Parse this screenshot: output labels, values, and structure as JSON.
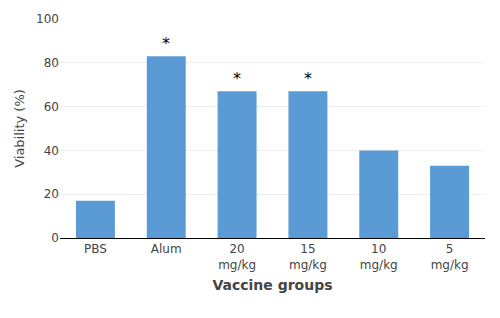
{
  "chart_data": {
    "type": "bar",
    "xlabel": "Vaccine groups",
    "ylabel": "Viability (%)",
    "categories": [
      "PBS",
      "Alum",
      "20\nmg/kg",
      "15\nmg/kg",
      "10\nmg/kg",
      "5\nmg/kg"
    ],
    "values": [
      17,
      83,
      67,
      67,
      40,
      33
    ],
    "color": "#5b9bd5",
    "ylim": [
      0,
      100
    ],
    "yticks": [
      0,
      20,
      40,
      60,
      80,
      100
    ],
    "grid": true,
    "annotations": [
      {
        "text": "*",
        "category": "Alum"
      },
      {
        "text": "*",
        "category": "20\nmg/kg"
      },
      {
        "text": "*",
        "category": "15\nmg/kg"
      }
    ]
  }
}
